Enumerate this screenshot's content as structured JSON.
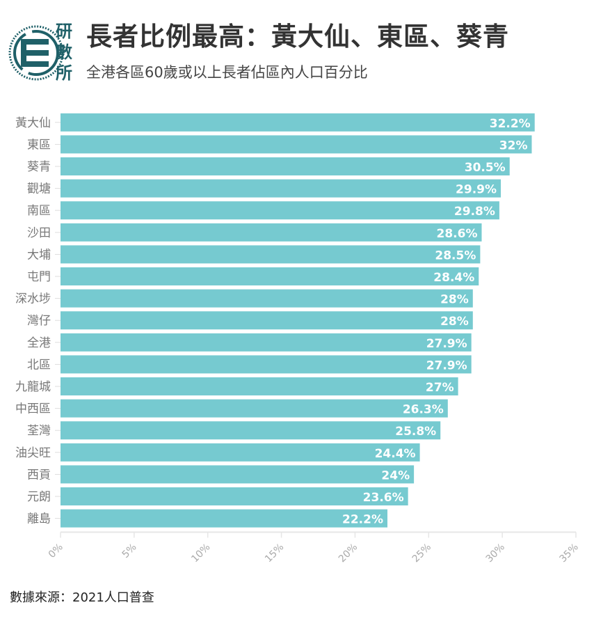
{
  "header": {
    "title": "長者比例最高：黃大仙、東區、葵青",
    "subtitle": "全港各區60歲或以上長者佔區內人口百分比",
    "logo_text": "研數所"
  },
  "colors": {
    "bar": "#76cad0",
    "brand": "#1f6068",
    "label": "#ffffff"
  },
  "chart_data": {
    "type": "bar",
    "orientation": "horizontal",
    "title": "長者比例最高：黃大仙、東區、葵青",
    "subtitle": "全港各區60歲或以上長者佔區內人口百分比",
    "xlabel": "",
    "ylabel": "",
    "xlim": [
      0,
      35
    ],
    "x_ticks": [
      "0%",
      "5%",
      "10%",
      "15%",
      "20%",
      "25%",
      "30%",
      "35%"
    ],
    "x_tick_values": [
      0,
      5,
      10,
      15,
      20,
      25,
      30,
      35
    ],
    "categories": [
      "黃大仙",
      "東區",
      "葵青",
      "觀塘",
      "南區",
      "沙田",
      "大埔",
      "屯門",
      "深水埗",
      "灣仔",
      "全港",
      "北區",
      "九龍城",
      "中西區",
      "荃灣",
      "油尖旺",
      "西貢",
      "元朗",
      "離島"
    ],
    "values": [
      32.2,
      32,
      30.5,
      29.9,
      29.8,
      28.6,
      28.5,
      28.4,
      28,
      28,
      27.9,
      27.9,
      27,
      26.3,
      25.8,
      24.4,
      24,
      23.6,
      22.2
    ],
    "data_labels": [
      "32.2%",
      "32%",
      "30.5%",
      "29.9%",
      "29.8%",
      "28.6%",
      "28.5%",
      "28.4%",
      "28%",
      "28%",
      "27.9%",
      "27.9%",
      "27%",
      "26.3%",
      "25.8%",
      "24.4%",
      "24%",
      "23.6%",
      "22.2%"
    ]
  },
  "footer": {
    "source": "數據來源：2021人口普查"
  }
}
